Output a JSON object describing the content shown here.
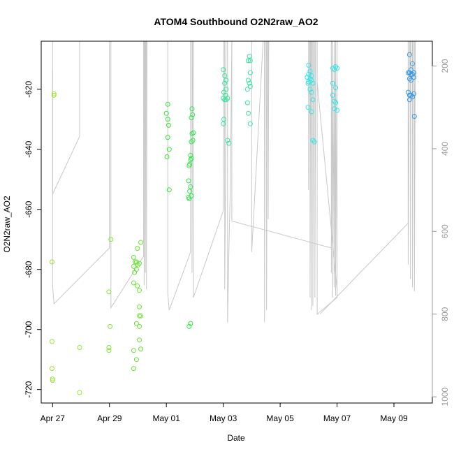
{
  "chart_data": {
    "type": "scatter",
    "title": "ATOM4 Southbound O2N2raw_AO2",
    "xlabel": "Date",
    "ylabel": "O2N2raw_AO2",
    "xlim_days": [
      -0.4,
      13.35
    ],
    "ylim": [
      -724.5,
      -604
    ],
    "y_ticks": [
      -720,
      -700,
      -680,
      -660,
      -640,
      -620
    ],
    "x_ticks": [
      {
        "day": 0,
        "label": "Apr 27"
      },
      {
        "day": 2,
        "label": "Apr 29"
      },
      {
        "day": 4,
        "label": "May 01"
      },
      {
        "day": 6,
        "label": "May 03"
      },
      {
        "day": 8,
        "label": "May 05"
      },
      {
        "day": 10,
        "label": "May 07"
      },
      {
        "day": 12,
        "label": "May 09"
      }
    ],
    "right_axis": {
      "label": "",
      "ylim": [
        1015,
        140
      ],
      "ticks": [
        200,
        400,
        600,
        800,
        1000
      ],
      "color": "#999999"
    },
    "depth_profile": {
      "color": "#c8c8c8",
      "segments": [
        [
          [
            0.0,
            210
          ],
          [
            0.0,
            510
          ],
          [
            0.95,
            370
          ],
          [
            0.95,
            140
          ]
        ],
        [
          [
            0.0,
            140
          ],
          [
            0.0,
            730
          ],
          [
            0.05,
            775
          ],
          [
            2.0,
            640
          ],
          [
            2.0,
            140
          ]
        ],
        [
          [
            2.05,
            140
          ],
          [
            2.05,
            660
          ],
          [
            2.05,
            785
          ],
          [
            3.2,
            660
          ],
          [
            3.2,
            140
          ]
        ],
        [
          [
            3.22,
            140
          ],
          [
            3.22,
            730
          ],
          [
            3.24,
            140
          ]
        ],
        [
          [
            3.26,
            140
          ],
          [
            3.26,
            700
          ],
          [
            3.28,
            140
          ]
        ],
        [
          [
            3.3,
            140
          ],
          [
            3.3,
            740
          ],
          [
            3.32,
            140
          ]
        ],
        [
          [
            4.05,
            140
          ],
          [
            4.05,
            750
          ],
          [
            4.1,
            790
          ],
          [
            4.85,
            650
          ],
          [
            4.85,
            140
          ]
        ],
        [
          [
            4.9,
            140
          ],
          [
            4.9,
            700
          ],
          [
            4.92,
            140
          ]
        ],
        [
          [
            4.95,
            140
          ],
          [
            4.95,
            760
          ],
          [
            6.0,
            550
          ],
          [
            6.02,
            140
          ]
        ],
        [
          [
            6.05,
            140
          ],
          [
            6.05,
            740
          ],
          [
            6.08,
            500
          ],
          [
            6.1,
            140
          ]
        ],
        [
          [
            6.15,
            140
          ],
          [
            6.15,
            820
          ],
          [
            6.2,
            640
          ],
          [
            6.25,
            490
          ],
          [
            6.3,
            140
          ]
        ],
        [
          [
            6.3,
            140
          ],
          [
            6.3,
            575
          ],
          [
            9.8,
            640
          ],
          [
            9.8,
            140
          ]
        ],
        [
          [
            7.0,
            140
          ],
          [
            7.0,
            650
          ],
          [
            7.4,
            140
          ]
        ],
        [
          [
            7.45,
            140
          ],
          [
            7.45,
            820
          ],
          [
            7.48,
            140
          ]
        ],
        [
          [
            7.52,
            140
          ],
          [
            7.52,
            790
          ],
          [
            7.55,
            140
          ]
        ],
        [
          [
            7.58,
            140
          ],
          [
            7.58,
            570
          ],
          [
            7.6,
            140
          ]
        ],
        [
          [
            9.0,
            140
          ],
          [
            9.0,
            500
          ],
          [
            9.02,
            140
          ]
        ],
        [
          [
            9.05,
            140
          ],
          [
            9.05,
            760
          ],
          [
            9.07,
            140
          ]
        ],
        [
          [
            9.1,
            140
          ],
          [
            9.1,
            790
          ],
          [
            9.12,
            140
          ]
        ],
        [
          [
            9.15,
            140
          ],
          [
            9.15,
            780
          ],
          [
            9.18,
            140
          ]
        ],
        [
          [
            9.22,
            140
          ],
          [
            9.22,
            760
          ],
          [
            9.25,
            140
          ]
        ],
        [
          [
            9.3,
            140
          ],
          [
            9.3,
            800
          ],
          [
            10.0,
            760
          ],
          [
            10.0,
            140
          ]
        ],
        [
          [
            9.3,
            240
          ],
          [
            10.0,
            740
          ]
        ],
        [
          [
            9.3,
            800
          ],
          [
            9.35,
            800
          ],
          [
            9.3,
            800
          ]
        ],
        [
          [
            9.8,
            140
          ],
          [
            9.8,
            700
          ],
          [
            9.85,
            140
          ]
        ],
        [
          [
            9.85,
            140
          ],
          [
            9.85,
            760
          ],
          [
            9.9,
            140
          ]
        ],
        [
          [
            9.9,
            140
          ],
          [
            9.9,
            735
          ],
          [
            9.95,
            140
          ]
        ],
        [
          [
            9.95,
            140
          ],
          [
            9.95,
            755
          ],
          [
            10.0,
            140
          ]
        ],
        [
          [
            9.4,
            800
          ],
          [
            12.5,
            580
          ],
          [
            12.5,
            140
          ]
        ],
        [
          [
            12.5,
            140
          ],
          [
            12.5,
            680
          ],
          [
            12.55,
            140
          ]
        ],
        [
          [
            12.58,
            140
          ],
          [
            12.58,
            715
          ],
          [
            12.6,
            140
          ]
        ],
        [
          [
            12.65,
            140
          ],
          [
            12.65,
            735
          ],
          [
            12.68,
            140
          ]
        ],
        [
          [
            12.72,
            140
          ],
          [
            12.72,
            745
          ],
          [
            12.75,
            140
          ]
        ]
      ]
    },
    "series": [
      {
        "name": "O2N2raw_AO2",
        "points": [
          [
            0.05,
            -621.5,
            "#99e633"
          ],
          [
            0.05,
            -622,
            "#99e633"
          ],
          [
            -0.02,
            -677.5,
            "#99e633"
          ],
          [
            -0.02,
            -704,
            "#99e633"
          ],
          [
            -0.02,
            -713,
            "#99e633"
          ],
          [
            0.0,
            -716.5,
            "#99e633"
          ],
          [
            0.0,
            -717,
            "#99e633"
          ],
          [
            0.95,
            -706,
            "#99e633"
          ],
          [
            0.95,
            -721,
            "#99e633"
          ],
          [
            2.05,
            -670,
            "#80e633"
          ],
          [
            1.98,
            -687.5,
            "#80e633"
          ],
          [
            2.02,
            -699,
            "#80e633"
          ],
          [
            1.98,
            -706,
            "#80e633"
          ],
          [
            1.98,
            -707,
            "#80e633"
          ],
          [
            2.85,
            -676,
            "#66e633"
          ],
          [
            2.9,
            -677.5,
            "#66e633"
          ],
          [
            2.95,
            -677.5,
            "#66e633"
          ],
          [
            3.05,
            -678,
            "#66e633"
          ],
          [
            3.0,
            -678.5,
            "#66e633"
          ],
          [
            2.85,
            -679,
            "#66e633"
          ],
          [
            2.95,
            -680,
            "#66e633"
          ],
          [
            2.88,
            -681,
            "#66e633"
          ],
          [
            2.98,
            -673,
            "#66e633"
          ],
          [
            3.1,
            -671,
            "#66e633"
          ],
          [
            2.85,
            -684.5,
            "#66e633"
          ],
          [
            2.98,
            -685.5,
            "#66e633"
          ],
          [
            3.05,
            -687,
            "#66e633"
          ],
          [
            3.05,
            -692.5,
            "#66e633"
          ],
          [
            3.05,
            -695.5,
            "#66e633"
          ],
          [
            3.1,
            -695.5,
            "#66e633"
          ],
          [
            2.95,
            -698,
            "#66e633"
          ],
          [
            3.05,
            -699,
            "#66e633"
          ],
          [
            3.05,
            -703.5,
            "#66e633"
          ],
          [
            2.85,
            -707,
            "#66e633"
          ],
          [
            3.1,
            -706.5,
            "#66e633"
          ],
          [
            2.95,
            -710,
            "#66e633"
          ],
          [
            2.85,
            -713,
            "#66e633"
          ],
          [
            4.05,
            -625,
            "#33e633"
          ],
          [
            4.0,
            -628,
            "#33e633"
          ],
          [
            4.05,
            -630,
            "#33e633"
          ],
          [
            4.08,
            -632,
            "#33e633"
          ],
          [
            4.05,
            -636,
            "#33e633"
          ],
          [
            4.1,
            -640,
            "#33e633"
          ],
          [
            4.02,
            -642.5,
            "#33e633"
          ],
          [
            4.1,
            -653.5,
            "#33e633"
          ],
          [
            4.9,
            -626.5,
            "#33e64d"
          ],
          [
            4.92,
            -628.5,
            "#33e64d"
          ],
          [
            4.88,
            -629.5,
            "#33e64d"
          ],
          [
            4.95,
            -634.5,
            "#33e64d"
          ],
          [
            4.9,
            -634.8,
            "#33e64d"
          ],
          [
            4.93,
            -637,
            "#33e64d"
          ],
          [
            4.88,
            -637.5,
            "#33e64d"
          ],
          [
            4.85,
            -642,
            "#33e64d"
          ],
          [
            4.88,
            -643,
            "#33e64d"
          ],
          [
            4.85,
            -643.5,
            "#33e64d"
          ],
          [
            4.82,
            -645,
            "#33e64d"
          ],
          [
            4.8,
            -645.5,
            "#33e64d"
          ],
          [
            4.78,
            -650.5,
            "#33e64d"
          ],
          [
            4.85,
            -652.5,
            "#33e64d"
          ],
          [
            4.82,
            -654,
            "#33e64d"
          ],
          [
            4.88,
            -655.5,
            "#33e64d"
          ],
          [
            4.78,
            -656,
            "#33e64d"
          ],
          [
            4.8,
            -656.5,
            "#33e64d"
          ],
          [
            4.85,
            -698,
            "#33e64d"
          ],
          [
            4.8,
            -699,
            "#33e64d"
          ],
          [
            6.0,
            -613.5,
            "#33e699"
          ],
          [
            6.05,
            -615.5,
            "#33e699"
          ],
          [
            6.1,
            -617,
            "#33e699"
          ],
          [
            6.05,
            -618,
            "#33e699"
          ],
          [
            6.1,
            -620,
            "#33e699"
          ],
          [
            6.02,
            -621,
            "#33e699"
          ],
          [
            6.08,
            -622,
            "#33e699"
          ],
          [
            6.0,
            -623,
            "#33e699"
          ],
          [
            6.15,
            -623,
            "#33e699"
          ],
          [
            6.05,
            -623.5,
            "#33e699"
          ],
          [
            6.1,
            -623.5,
            "#33e699"
          ],
          [
            6.02,
            -630,
            "#33e699"
          ],
          [
            6.0,
            -631.5,
            "#33e699"
          ],
          [
            6.15,
            -637,
            "#33e699"
          ],
          [
            6.2,
            -638,
            "#33e699"
          ],
          [
            6.92,
            -609,
            "#33e699"
          ],
          [
            6.95,
            -610.5,
            "#33e699"
          ],
          [
            6.88,
            -610.5,
            "#33e699"
          ],
          [
            6.95,
            -614.5,
            "#33e699"
          ],
          [
            6.88,
            -617,
            "#33e699"
          ],
          [
            6.92,
            -618,
            "#33e699"
          ],
          [
            6.95,
            -619,
            "#33e699"
          ],
          [
            6.85,
            -620,
            "#33e699"
          ],
          [
            6.85,
            -624.5,
            "#33e699"
          ],
          [
            6.88,
            -628,
            "#33e699"
          ],
          [
            6.95,
            -631.5,
            "#33e699"
          ],
          [
            9.0,
            -612,
            "#33e6e6"
          ],
          [
            9.05,
            -614,
            "#33e6e6"
          ],
          [
            9.0,
            -615,
            "#33e6e6"
          ],
          [
            9.1,
            -615.5,
            "#33e6e6"
          ],
          [
            8.95,
            -616,
            "#33e6e6"
          ],
          [
            9.05,
            -616.5,
            "#33e6e6"
          ],
          [
            9.1,
            -617,
            "#33e6e6"
          ],
          [
            9.0,
            -617.5,
            "#33e6e6"
          ],
          [
            8.98,
            -618,
            "#33e6e6"
          ],
          [
            9.15,
            -618,
            "#33e6e6"
          ],
          [
            9.05,
            -620,
            "#33e6e6"
          ],
          [
            9.1,
            -621,
            "#33e6e6"
          ],
          [
            9.15,
            -623.5,
            "#33e6e6"
          ],
          [
            8.98,
            -626,
            "#33e6e6"
          ],
          [
            9.1,
            -627.5,
            "#33e6e6"
          ],
          [
            9.15,
            -637,
            "#33e6e6"
          ],
          [
            9.2,
            -637.5,
            "#33e6e6"
          ],
          [
            9.85,
            -613,
            "#33e6e6"
          ],
          [
            9.95,
            -612.5,
            "#33e6e6"
          ],
          [
            10.0,
            -613,
            "#33e6e6"
          ],
          [
            9.9,
            -613.5,
            "#33e6e6"
          ],
          [
            9.85,
            -618,
            "#33e6e6"
          ],
          [
            9.95,
            -619.5,
            "#33e6e6"
          ],
          [
            9.85,
            -622,
            "#33e6e6"
          ],
          [
            9.9,
            -624,
            "#33e6e6"
          ],
          [
            9.95,
            -624.5,
            "#33e6e6"
          ],
          [
            9.9,
            -626.5,
            "#33e6e6"
          ],
          [
            10.0,
            -627,
            "#33e6e6"
          ],
          [
            12.55,
            -608.5,
            "#3399e6"
          ],
          [
            12.65,
            -611.5,
            "#3399e6"
          ],
          [
            12.6,
            -613.5,
            "#3399e6"
          ],
          [
            12.7,
            -614.5,
            "#3399e6"
          ],
          [
            12.55,
            -614.5,
            "#3399e6"
          ],
          [
            12.5,
            -614.5,
            "#3399e6"
          ],
          [
            12.65,
            -615,
            "#3399e6"
          ],
          [
            12.6,
            -615,
            "#3399e6"
          ],
          [
            12.7,
            -616,
            "#3399e6"
          ],
          [
            12.55,
            -616.5,
            "#3399e6"
          ],
          [
            12.6,
            -617,
            "#3399e6"
          ],
          [
            12.5,
            -621,
            "#3399e6"
          ],
          [
            12.7,
            -621.5,
            "#3399e6"
          ],
          [
            12.55,
            -622,
            "#3399e6"
          ],
          [
            12.6,
            -622,
            "#3399e6"
          ],
          [
            12.65,
            -622.5,
            "#3399e6"
          ],
          [
            12.55,
            -623.5,
            "#3399e6"
          ],
          [
            12.72,
            -629,
            "#3399e6"
          ]
        ]
      }
    ]
  }
}
